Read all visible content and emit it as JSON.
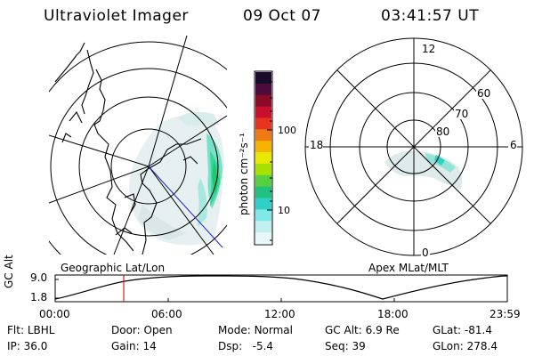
{
  "header": {
    "instrument": "Ultraviolet Imager",
    "date": "09 Oct 07",
    "time": "03:41:57 UT"
  },
  "geo_panel": {
    "label": "Geographic Lat/Lon"
  },
  "apex_panel": {
    "label": "Apex MLat/MLT",
    "mlt_labels": [
      "12",
      "18",
      "6",
      "0"
    ],
    "mlat_labels": [
      "60",
      "70",
      "80"
    ]
  },
  "colorbar": {
    "unit_label": "photon cm⁻²s⁻¹",
    "ticks": [
      "100",
      "10"
    ],
    "colors": [
      "#1a0a2e",
      "#4b0b3b",
      "#8b0a26",
      "#c8102e",
      "#e8331f",
      "#f07a14",
      "#f5b400",
      "#e8e800",
      "#a8e000",
      "#55d040",
      "#20c080",
      "#30d0c8",
      "#80e8e8",
      "#c0f0f0",
      "#e8f8f8"
    ]
  },
  "altitude_plot": {
    "ylabel": "GC Alt",
    "yticks": [
      "9.0",
      "1.8"
    ],
    "xticks": [
      "00:00",
      "06:00",
      "12:00",
      "18:00",
      "23:59"
    ],
    "marker_time": "03:41:57"
  },
  "status": {
    "row1": [
      {
        "key": "Flt:",
        "value": "LBHL"
      },
      {
        "key": "Door:",
        "value": "Open"
      },
      {
        "key": "Mode:",
        "value": "Normal"
      },
      {
        "key": "GC Alt:",
        "value": "6.9 Re"
      },
      {
        "key": "GLat:",
        "value": "-81.4"
      }
    ],
    "row2": [
      {
        "key": "IP:",
        "value": "36.0"
      },
      {
        "key": "Gain:",
        "value": "14"
      },
      {
        "key": "Dsp:",
        "value": "-5.4"
      },
      {
        "key": "Seq:",
        "value": "39"
      },
      {
        "key": "GLon:",
        "value": "278.4"
      }
    ]
  }
}
